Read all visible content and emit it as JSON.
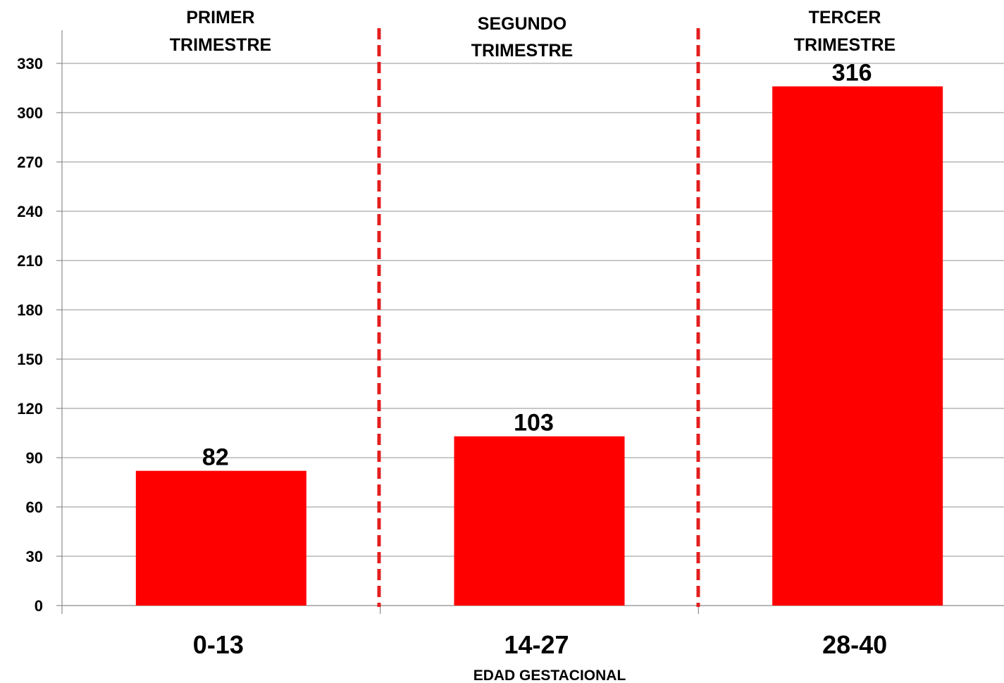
{
  "chart_data": {
    "type": "bar",
    "categories": [
      "0-13",
      "14-27",
      "28-40"
    ],
    "values": [
      82,
      103,
      316
    ],
    "value_labels": [
      "82",
      "103",
      "316"
    ],
    "xlabel": "EDAD GESTACIONAL",
    "ylabel": "",
    "ylim": [
      0,
      345
    ],
    "yticks": [
      0,
      30,
      60,
      90,
      120,
      150,
      180,
      210,
      240,
      270,
      300,
      330
    ],
    "ytick_labels": [
      "0",
      "30",
      "60",
      "90",
      "120",
      "150",
      "180",
      "210",
      "240",
      "270",
      "300",
      "330"
    ],
    "grid": true,
    "bar_color": "#ff0000",
    "divider_color": "#e41e1e",
    "annotations": [
      {
        "line1": "PRIMER",
        "line2": "TRIMESTRE"
      },
      {
        "line1": "SEGUNDO",
        "line2": "TRIMESTRE"
      },
      {
        "line1": "TERCER",
        "line2": "TRIMESTRE"
      }
    ]
  }
}
